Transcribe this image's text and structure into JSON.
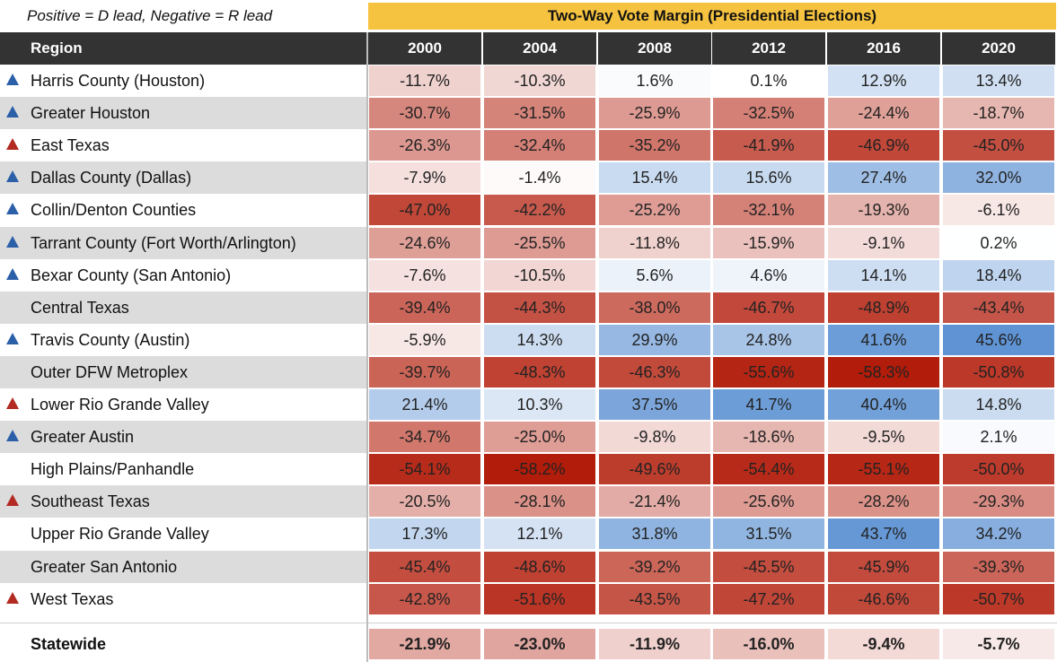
{
  "note": "Positive = D lead, Negative = R lead",
  "banner": "Two-Way Vote Margin (Presidential Elections)",
  "header": {
    "region": "Region"
  },
  "chart_data": {
    "type": "table",
    "title": "Two-Way Vote Margin (Presidential Elections)",
    "years": [
      "2000",
      "2004",
      "2008",
      "2012",
      "2016",
      "2020"
    ],
    "rows": [
      {
        "region": "Harris County (Houston)",
        "trend": "up-blue",
        "values": [
          "-11.7%",
          "-10.3%",
          "1.6%",
          "0.1%",
          "12.9%",
          "13.4%"
        ]
      },
      {
        "region": "Greater Houston",
        "trend": "up-blue",
        "values": [
          "-30.7%",
          "-31.5%",
          "-25.9%",
          "-32.5%",
          "-24.4%",
          "-18.7%"
        ]
      },
      {
        "region": "East Texas",
        "trend": "up-red",
        "values": [
          "-26.3%",
          "-32.4%",
          "-35.2%",
          "-41.9%",
          "-46.9%",
          "-45.0%"
        ]
      },
      {
        "region": "Dallas County (Dallas)",
        "trend": "up-blue",
        "values": [
          "-7.9%",
          "-1.4%",
          "15.4%",
          "15.6%",
          "27.4%",
          "32.0%"
        ]
      },
      {
        "region": "Collin/Denton Counties",
        "trend": "up-blue",
        "values": [
          "-47.0%",
          "-42.2%",
          "-25.2%",
          "-32.1%",
          "-19.3%",
          "-6.1%"
        ]
      },
      {
        "region": "Tarrant County (Fort Worth/Arlington)",
        "trend": "up-blue",
        "values": [
          "-24.6%",
          "-25.5%",
          "-11.8%",
          "-15.9%",
          "-9.1%",
          "0.2%"
        ]
      },
      {
        "region": "Bexar County (San Antonio)",
        "trend": "up-blue",
        "values": [
          "-7.6%",
          "-10.5%",
          "5.6%",
          "4.6%",
          "14.1%",
          "18.4%"
        ]
      },
      {
        "region": "Central Texas",
        "trend": "",
        "values": [
          "-39.4%",
          "-44.3%",
          "-38.0%",
          "-46.7%",
          "-48.9%",
          "-43.4%"
        ]
      },
      {
        "region": "Travis County (Austin)",
        "trend": "up-blue",
        "values": [
          "-5.9%",
          "14.3%",
          "29.9%",
          "24.8%",
          "41.6%",
          "45.6%"
        ]
      },
      {
        "region": "Outer DFW Metroplex",
        "trend": "",
        "values": [
          "-39.7%",
          "-48.3%",
          "-46.3%",
          "-55.6%",
          "-58.3%",
          "-50.8%"
        ]
      },
      {
        "region": "Lower Rio Grande Valley",
        "trend": "up-red",
        "values": [
          "21.4%",
          "10.3%",
          "37.5%",
          "41.7%",
          "40.4%",
          "14.8%"
        ]
      },
      {
        "region": "Greater Austin",
        "trend": "up-blue",
        "values": [
          "-34.7%",
          "-25.0%",
          "-9.8%",
          "-18.6%",
          "-9.5%",
          "2.1%"
        ]
      },
      {
        "region": "High Plains/Panhandle",
        "trend": "",
        "values": [
          "-54.1%",
          "-58.2%",
          "-49.6%",
          "-54.4%",
          "-55.1%",
          "-50.0%"
        ]
      },
      {
        "region": "Southeast Texas",
        "trend": "up-red",
        "values": [
          "-20.5%",
          "-28.1%",
          "-21.4%",
          "-25.6%",
          "-28.2%",
          "-29.3%"
        ]
      },
      {
        "region": "Upper Rio Grande Valley",
        "trend": "",
        "values": [
          "17.3%",
          "12.1%",
          "31.8%",
          "31.5%",
          "43.7%",
          "34.2%"
        ]
      },
      {
        "region": "Greater San Antonio",
        "trend": "",
        "values": [
          "-45.4%",
          "-48.6%",
          "-39.2%",
          "-45.5%",
          "-45.9%",
          "-39.3%"
        ]
      },
      {
        "region": "West Texas",
        "trend": "up-red",
        "values": [
          "-42.8%",
          "-51.6%",
          "-43.5%",
          "-47.2%",
          "-46.6%",
          "-50.7%"
        ]
      }
    ],
    "statewide": {
      "region": "Statewide",
      "values": [
        "-21.9%",
        "-23.0%",
        "-11.9%",
        "-16.0%",
        "-9.4%",
        "-5.7%"
      ]
    },
    "colors": {
      "red": "#b8220f",
      "blue": "#3a7bc8",
      "white": "#ffffff",
      "banner": "#f6c340",
      "header": "#333333"
    }
  }
}
